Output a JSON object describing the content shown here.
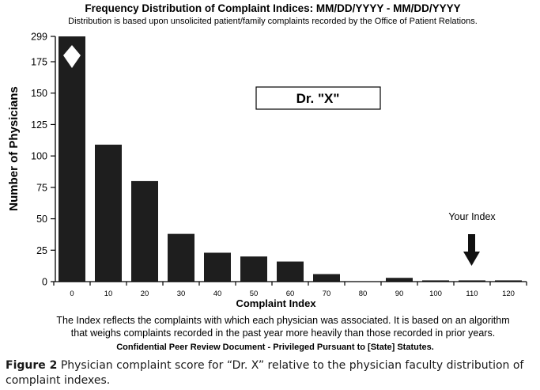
{
  "chart_data": {
    "type": "bar",
    "title": "Frequency Distribution of Complaint Indices: MM/DD/YYYY - MM/DD/YYYY",
    "subtitle": "Distribution is based upon unsolicited patient/family complaints recorded by the Office of Patient Relations.",
    "xlabel": "Complaint Index",
    "ylabel": "Number of Physicians",
    "categories": [
      "0",
      "10",
      "20",
      "30",
      "40",
      "50",
      "60",
      "70",
      "80",
      "90",
      "100",
      "110",
      "120"
    ],
    "values": [
      299,
      109,
      80,
      38,
      23,
      20,
      16,
      6,
      0,
      3,
      1,
      1,
      1
    ],
    "y_ticks": [
      "0",
      "25",
      "50",
      "75",
      "100",
      "125",
      "150",
      "175",
      "299"
    ],
    "ylim": [
      0,
      299
    ],
    "axis_break": "between 175 and 299",
    "grid": false,
    "bar_color": "#1e1e1e",
    "doctor_label": "Dr. \"X\"",
    "your_index_label": "Your Index",
    "your_index_value": "110",
    "note_lines": [
      "The Index reflects the complaints with which each physician was associated.  It is based on an algorithm",
      "that weighs complaints recorded in the past year more heavily than those recorded in prior years."
    ],
    "confidential": "Confidential Peer Review Document - Privileged Pursuant to [State] Statutes."
  },
  "caption": {
    "label": "Figure 2",
    "text": " Physician complaint score for “Dr. X” relative to the physician faculty distribution of complaint indexes."
  }
}
